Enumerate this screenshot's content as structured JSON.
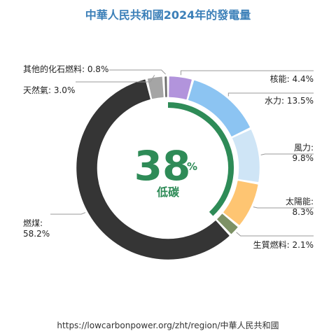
{
  "chart_data": {
    "type": "pie",
    "title": "中華人民共和國2024年的發電量",
    "slices": [
      {
        "label": "核能",
        "value": 4.4,
        "value_text": "4.4%",
        "color": "#b294dc"
      },
      {
        "label": "水力",
        "value": 13.5,
        "value_text": "13.5%",
        "color": "#8cc4f2"
      },
      {
        "label": "風力",
        "value": 9.8,
        "value_text": "9.8%",
        "color": "#cfe5f6"
      },
      {
        "label": "太陽能",
        "value": 8.3,
        "value_text": "8.3%",
        "color": "#fec572"
      },
      {
        "label": "生質燃料",
        "value": 2.1,
        "value_text": "2.1%",
        "color": "#7d9165"
      },
      {
        "label": "燃煤",
        "value": 58.2,
        "value_text": "58.2%",
        "color": "#353535"
      },
      {
        "label": "天然氣",
        "value": 3.0,
        "value_text": "3.0%",
        "color": "#a5a5a5"
      },
      {
        "label": "其他的化石燃料",
        "value": 0.8,
        "value_text": "0.8%",
        "color": "#6f6f6f"
      }
    ],
    "center": {
      "value": 38,
      "value_text": "38",
      "unit": "%",
      "label": "低碳",
      "color": "#2e8b57"
    }
  },
  "footer": {
    "url": "https://lowcarbonpower.org/zht/region/中華人民共和國"
  }
}
